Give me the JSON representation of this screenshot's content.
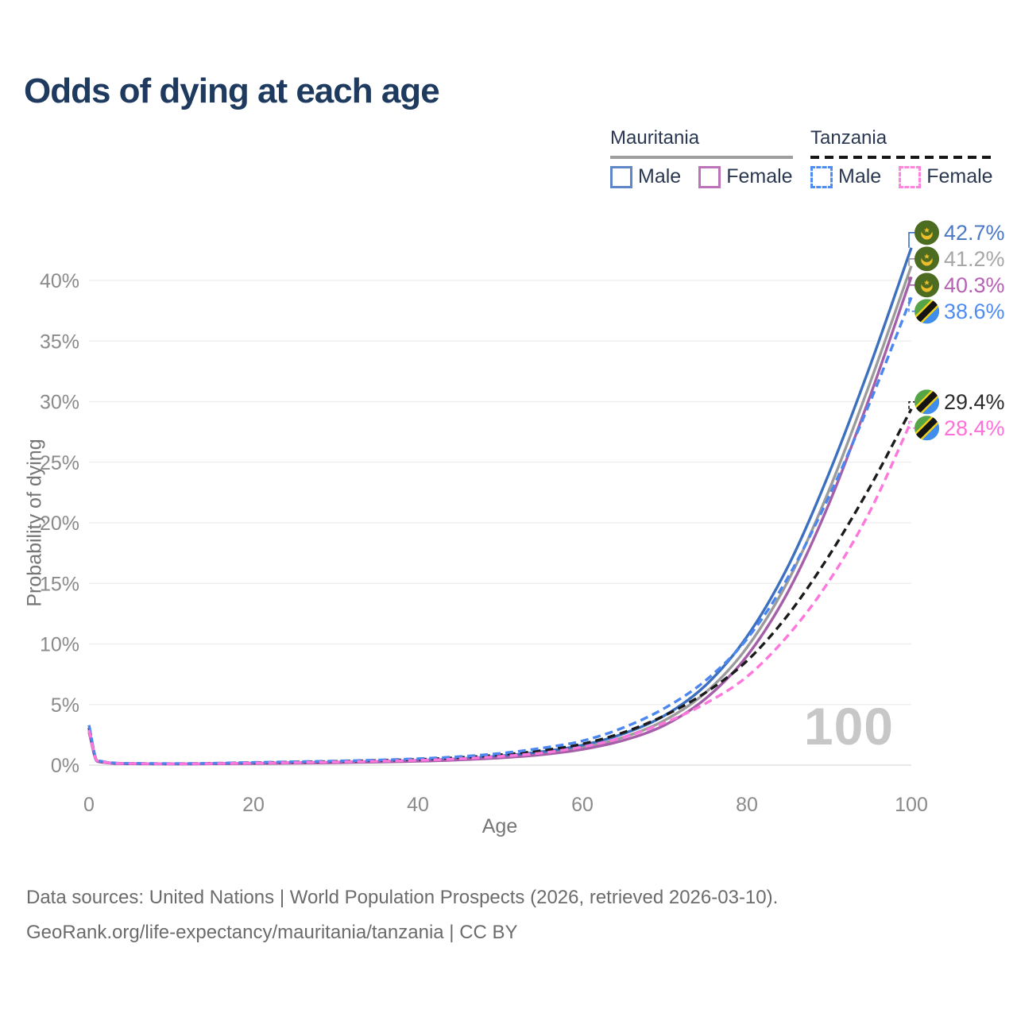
{
  "title": "Odds of dying at each age",
  "legend": {
    "groups": [
      {
        "country": "Mauritania",
        "style": "solid",
        "items": [
          {
            "label": "Male",
            "color": "#5f87c7"
          },
          {
            "label": "Female",
            "color": "#bb74b8"
          }
        ]
      },
      {
        "country": "Tanzania",
        "style": "dashed",
        "items": [
          {
            "label": "Male",
            "color": "#4f8df0"
          },
          {
            "label": "Female",
            "color": "#ff85de"
          }
        ]
      }
    ]
  },
  "chart_data": {
    "type": "line",
    "title": "Odds of dying at each age",
    "xlabel": "Age",
    "ylabel": "Probability of dying",
    "x_ticks": [
      0,
      20,
      40,
      60,
      80,
      100
    ],
    "y_ticks": [
      "0%",
      "5%",
      "10%",
      "15%",
      "20%",
      "25%",
      "30%",
      "35%",
      "40%"
    ],
    "xlim": [
      0,
      100
    ],
    "ylim_pct": [
      0,
      44
    ],
    "grid": "horizontal",
    "legend_position": "top-right",
    "watermark": "100",
    "ages": [
      0,
      1,
      5,
      10,
      15,
      20,
      25,
      30,
      35,
      40,
      45,
      50,
      55,
      60,
      65,
      70,
      75,
      80,
      85,
      90,
      95,
      100
    ],
    "series": [
      {
        "name": "Mauritania Total",
        "flag": "mauritania",
        "dash": false,
        "color": "#9b9b9b",
        "label_color": "#a6a6a6",
        "end_value": 41.2,
        "end_label": "41.2%",
        "values": [
          2.85,
          0.33,
          0.12,
          0.1,
          0.12,
          0.15,
          0.19,
          0.23,
          0.28,
          0.36,
          0.49,
          0.68,
          0.98,
          1.45,
          2.3,
          3.7,
          6.0,
          9.7,
          15.2,
          22.7,
          31.6,
          41.2
        ]
      },
      {
        "name": "Mauritania Male",
        "flag": "mauritania",
        "dash": false,
        "color": "#3c70bf",
        "label_color": "#4b79c6",
        "end_value": 42.7,
        "end_label": "42.7%",
        "values": [
          3.0,
          0.35,
          0.13,
          0.11,
          0.13,
          0.17,
          0.21,
          0.25,
          0.31,
          0.4,
          0.54,
          0.76,
          1.1,
          1.65,
          2.6,
          4.1,
          6.6,
          10.6,
          16.4,
          24.1,
          33.0,
          42.7
        ]
      },
      {
        "name": "Mauritania Female",
        "flag": "mauritania",
        "dash": false,
        "color": "#a55fa9",
        "label_color": "#b562b5",
        "end_value": 40.3,
        "end_label": "40.3%",
        "values": [
          2.7,
          0.31,
          0.11,
          0.09,
          0.11,
          0.13,
          0.16,
          0.2,
          0.25,
          0.32,
          0.43,
          0.6,
          0.86,
          1.3,
          2.05,
          3.3,
          5.5,
          9.0,
          14.3,
          21.6,
          30.5,
          40.3
        ]
      },
      {
        "name": "Tanzania Total",
        "flag": "tanzania",
        "dash": true,
        "color": "#1b1b1b",
        "label_color": "#2c2c2c",
        "end_value": 29.4,
        "end_label": "29.4%",
        "values": [
          3.1,
          0.38,
          0.14,
          0.12,
          0.15,
          0.2,
          0.25,
          0.31,
          0.38,
          0.47,
          0.62,
          0.85,
          1.2,
          1.75,
          2.7,
          4.1,
          6.0,
          8.6,
          12.4,
          17.3,
          23.0,
          29.4
        ]
      },
      {
        "name": "Tanzania Male",
        "flag": "tanzania",
        "dash": true,
        "color": "#4b87ef",
        "label_color": "#4f8cf2",
        "end_value": 38.6,
        "end_label": "38.6%",
        "values": [
          3.3,
          0.4,
          0.15,
          0.13,
          0.16,
          0.22,
          0.28,
          0.34,
          0.42,
          0.53,
          0.7,
          0.97,
          1.4,
          2.0,
          3.1,
          4.7,
          7.0,
          10.4,
          15.5,
          22.2,
          30.0,
          38.6
        ]
      },
      {
        "name": "Tanzania Female",
        "flag": "tanzania",
        "dash": true,
        "color": "#fd77dc",
        "label_color": "#ff70da",
        "end_value": 28.4,
        "end_label": "28.4%",
        "values": [
          2.9,
          0.36,
          0.13,
          0.11,
          0.13,
          0.17,
          0.21,
          0.26,
          0.32,
          0.4,
          0.52,
          0.72,
          1.0,
          1.5,
          2.3,
          3.5,
          5.1,
          7.3,
          10.7,
          15.2,
          21.0,
          28.4
        ]
      }
    ]
  },
  "footer": {
    "line1": "Data sources: United Nations | World Population Prospects (2026, retrieved 2026-03-10).",
    "line2": "GeoRank.org/life-expectancy/mauritania/tanzania | CC BY"
  }
}
